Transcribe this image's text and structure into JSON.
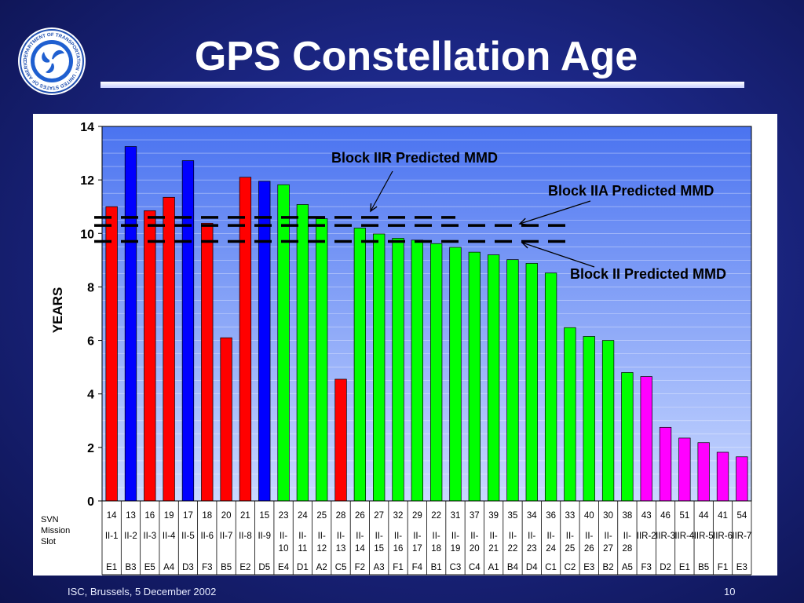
{
  "slide": {
    "title": "GPS Constellation Age",
    "footer_left": "ISC, Brussels, 5 December 2002",
    "footer_right": "10",
    "seal_text": "DEPARTMENT OF TRANSPORTATION · UNITED STATES OF AMERICA"
  },
  "row_labels": {
    "svn": "SVN",
    "mission": "Mission",
    "slot": "Slot"
  },
  "annotations": {
    "iir": "Block IIR Predicted MMD",
    "iia": "Block IIA Predicted MMD",
    "ii": "Block II Predicted MMD"
  },
  "colors": {
    "block_ii": "#ff0000",
    "block_ii_alt": "#0000ff",
    "block_iia": "#00ff00",
    "block_iir": "#ff00ff",
    "plot_bg_top": "#4a73f0",
    "plot_bg_bottom": "#c9d8ff"
  },
  "chart_data": {
    "type": "bar",
    "ylabel": "YEARS",
    "ylim": [
      0,
      14
    ],
    "yticks": [
      0,
      2,
      4,
      6,
      8,
      10,
      12,
      14
    ],
    "svn": [
      "14",
      "13",
      "16",
      "19",
      "17",
      "18",
      "20",
      "21",
      "15",
      "23",
      "24",
      "25",
      "28",
      "26",
      "27",
      "32",
      "29",
      "22",
      "31",
      "37",
      "39",
      "35",
      "34",
      "36",
      "33",
      "40",
      "30",
      "38",
      "43",
      "46",
      "51",
      "44",
      "41",
      "54"
    ],
    "mission": [
      "II-1",
      "II-2",
      "II-3",
      "II-4",
      "II-5",
      "II-6",
      "II-7",
      "II-8",
      "II-9",
      "II-10",
      "II-11",
      "II-12",
      "II-13",
      "II-14",
      "II-15",
      "II-16",
      "II-17",
      "II-18",
      "II-19",
      "II-20",
      "II-21",
      "II-22",
      "II-23",
      "II-24",
      "II-25",
      "II-26",
      "II-27",
      "II-28",
      "IIR-2",
      "IIR-3",
      "IIR-4",
      "IIR-5",
      "IIR-6",
      "IIR-7"
    ],
    "slot": [
      "E1",
      "B3",
      "E5",
      "A4",
      "D3",
      "F3",
      "B5",
      "E2",
      "D5",
      "E4",
      "D1",
      "A2",
      "C5",
      "F2",
      "A3",
      "F1",
      "F4",
      "B1",
      "C3",
      "C4",
      "A1",
      "B4",
      "D4",
      "C1",
      "C2",
      "E3",
      "B2",
      "A5",
      "F3",
      "D2",
      "E1",
      "B5",
      "F1",
      "E3"
    ],
    "values": [
      11.0,
      13.25,
      10.85,
      11.35,
      12.72,
      10.38,
      6.1,
      12.1,
      11.95,
      11.82,
      11.08,
      10.55,
      4.55,
      10.2,
      9.98,
      9.82,
      9.75,
      9.62,
      9.48,
      9.3,
      9.2,
      9.02,
      8.88,
      8.52,
      6.48,
      6.15,
      6.0,
      4.8,
      4.65,
      2.75,
      2.35,
      2.18,
      1.82,
      1.65
    ],
    "bar_colors": [
      "#ff0000",
      "#0000ff",
      "#ff0000",
      "#ff0000",
      "#0000ff",
      "#ff0000",
      "#ff0000",
      "#ff0000",
      "#0000ff",
      "#00ff00",
      "#00ff00",
      "#00ff00",
      "#ff0000",
      "#00ff00",
      "#00ff00",
      "#00ff00",
      "#00ff00",
      "#00ff00",
      "#00ff00",
      "#00ff00",
      "#00ff00",
      "#00ff00",
      "#00ff00",
      "#00ff00",
      "#00ff00",
      "#00ff00",
      "#00ff00",
      "#00ff00",
      "#ff00ff",
      "#ff00ff",
      "#ff00ff",
      "#ff00ff",
      "#ff00ff",
      "#ff00ff"
    ],
    "reference_lines": [
      {
        "name": "Block IIR Predicted MMD",
        "y": 10.6,
        "x_end_bar": 18.5
      },
      {
        "name": "Block IIA Predicted MMD",
        "y": 10.3,
        "x_end_bar": 24.5
      },
      {
        "name": "Block II Predicted MMD",
        "y": 9.7,
        "x_end_bar": 24.5
      }
    ]
  }
}
